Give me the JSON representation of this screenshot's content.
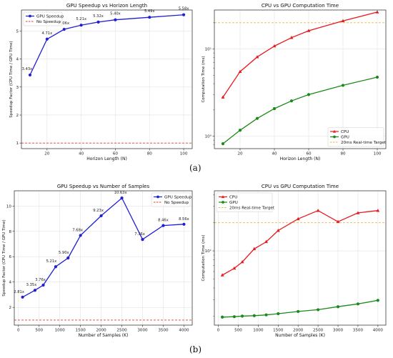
{
  "figure": {
    "label_a": "(a)",
    "label_b": "(b)"
  },
  "chart_data": [
    {
      "id": "a1",
      "type": "line",
      "title": "GPU Speedup vs Horizon Length",
      "xlabel": "Horizon Length (N)",
      "ylabel": "Speedup Factor (CPU Time / GPU Time)",
      "xlim": [
        5,
        105
      ],
      "ylim": [
        0.8,
        5.75
      ],
      "xticks": [
        20,
        40,
        60,
        80,
        100
      ],
      "yticks": [
        1,
        2,
        3,
        4,
        5
      ],
      "grid": true,
      "legend_position": "top-left",
      "series": [
        {
          "name": "GPU Speedup",
          "color": "#1f1fd6",
          "marker": "circle",
          "x": [
            10,
            20,
            30,
            40,
            50,
            60,
            80,
            100
          ],
          "y": [
            3.43,
            4.71,
            5.06,
            5.21,
            5.32,
            5.4,
            5.49,
            5.58
          ],
          "labels": [
            "3.43x",
            "4.71x",
            "5.06x",
            "5.21x",
            "5.32x",
            "5.40x",
            "5.49x",
            "5.58x"
          ]
        }
      ],
      "hlines": [
        {
          "name": "No Speedup",
          "y": 1,
          "color": "#e8382f",
          "style": "dashed"
        }
      ]
    },
    {
      "id": "a2",
      "type": "line",
      "title": "CPU vs GPU Computation Time",
      "xlabel": "Horizon Length (N)",
      "ylabel": "Computation Time (ms)",
      "yscale": "log",
      "xlim": [
        5,
        105
      ],
      "ylim": [
        0.72,
        28
      ],
      "xticks": [
        20,
        40,
        60,
        80,
        100
      ],
      "yticks": [
        1,
        10
      ],
      "ytick_labels": [
        "10⁰",
        "10¹"
      ],
      "grid": true,
      "legend_position": "bottom-right",
      "series": [
        {
          "name": "CPU",
          "color": "#e8191f",
          "marker": "triangle",
          "x": [
            10,
            20,
            30,
            40,
            50,
            60,
            80,
            100
          ],
          "y": [
            2.8,
            5.5,
            8.1,
            10.8,
            13.5,
            16.2,
            21.0,
            26.5
          ]
        },
        {
          "name": "GPU",
          "color": "#1a8a1a",
          "marker": "circle",
          "x": [
            10,
            20,
            30,
            40,
            50,
            60,
            80,
            100
          ],
          "y": [
            0.82,
            1.17,
            1.6,
            2.07,
            2.54,
            3.0,
            3.83,
            4.75
          ]
        }
      ],
      "hlines": [
        {
          "name": "20ms Real-time Target",
          "y": 20,
          "color": "#f0b04a",
          "style": "dashed"
        }
      ]
    },
    {
      "id": "b1",
      "type": "line",
      "title": "GPU Speedup vs Number of Samples",
      "xlabel": "Number of Samples (K)",
      "ylabel": "Speedup Factor (CPU Time / GPU Time)",
      "xlim": [
        -100,
        4200
      ],
      "ylim": [
        0.6,
        11.2
      ],
      "xticks": [
        0,
        500,
        1000,
        1500,
        2000,
        2500,
        3000,
        3500,
        4000
      ],
      "yticks": [
        2,
        4,
        6,
        8,
        10
      ],
      "grid": true,
      "legend_position": "top-right",
      "series": [
        {
          "name": "GPU Speedup",
          "color": "#1f1fd6",
          "marker": "circle",
          "x": [
            100,
            400,
            600,
            900,
            1200,
            1500,
            2000,
            2500,
            3000,
            3500,
            4000
          ],
          "y": [
            2.81,
            3.35,
            3.76,
            5.21,
            5.9,
            7.68,
            9.23,
            10.63,
            7.36,
            8.46,
            8.56
          ],
          "labels": [
            "2.81x",
            "3.35x",
            "3.76x",
            "5.21x",
            "5.90x",
            "7.68x",
            "9.23x",
            "10.63x",
            "7.36x",
            "8.46x",
            "8.56x"
          ]
        }
      ],
      "hlines": [
        {
          "name": "No Speedup",
          "y": 1,
          "color": "#e8382f",
          "style": "dashed"
        }
      ]
    },
    {
      "id": "b2",
      "type": "line",
      "title": "CPU vs GPU Computation Time",
      "xlabel": "Number of Samples (K)",
      "ylabel": "Computation Time (ms)",
      "yscale": "log",
      "xlim": [
        -100,
        4200
      ],
      "ylim": [
        1.6,
        44
      ],
      "xticks": [
        0,
        500,
        1000,
        1500,
        2000,
        2500,
        3000,
        3500,
        4000
      ],
      "yticks": [
        10
      ],
      "ytick_labels": [
        "10¹"
      ],
      "grid": true,
      "legend_position": "top-left",
      "series": [
        {
          "name": "CPU",
          "color": "#e8191f",
          "marker": "triangle",
          "x": [
            100,
            400,
            600,
            900,
            1200,
            1500,
            2000,
            2500,
            3000,
            3500,
            4000
          ],
          "y": [
            5.5,
            6.5,
            7.6,
            10.5,
            12.5,
            16.5,
            22.0,
            27.0,
            20.5,
            25.5,
            27.0
          ]
        },
        {
          "name": "GPU",
          "color": "#1a8a1a",
          "marker": "circle",
          "x": [
            100,
            400,
            600,
            900,
            1200,
            1500,
            2000,
            2500,
            3000,
            3500,
            4000
          ],
          "y": [
            1.95,
            1.97,
            2.0,
            2.02,
            2.06,
            2.12,
            2.24,
            2.34,
            2.52,
            2.7,
            2.95
          ]
        }
      ],
      "hlines": [
        {
          "name": "20ms Real-time Target",
          "y": 20,
          "color": "#f0b04a",
          "style": "dashed"
        }
      ]
    }
  ]
}
